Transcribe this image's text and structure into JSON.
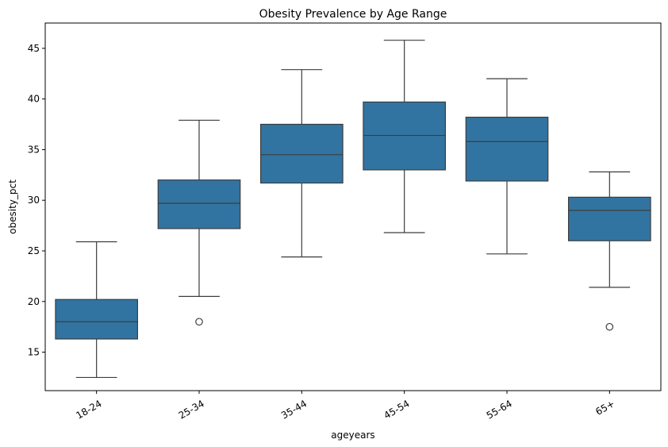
{
  "chart_data": {
    "type": "box",
    "title": "Obesity Prevalence by Age Range",
    "xlabel": "ageyears",
    "ylabel": "obesity_pct",
    "ylim": [
      11.2,
      47.5
    ],
    "yticks": [
      15,
      20,
      25,
      30,
      35,
      40,
      45
    ],
    "grid": false,
    "colors": {
      "box": "#3274a1",
      "line": "#3d3d3d",
      "spine": "#000000"
    },
    "categories": [
      "18-24",
      "25-34",
      "35-44",
      "45-54",
      "55-64",
      "65+"
    ],
    "boxes": [
      {
        "category": "18-24",
        "whisker_low": 12.5,
        "q1": 16.3,
        "median": 18.0,
        "q3": 20.2,
        "whisker_high": 25.9,
        "outliers": []
      },
      {
        "category": "25-34",
        "whisker_low": 20.5,
        "q1": 27.2,
        "median": 29.7,
        "q3": 32.0,
        "whisker_high": 37.9,
        "outliers": [
          18.0
        ]
      },
      {
        "category": "35-44",
        "whisker_low": 24.4,
        "q1": 31.7,
        "median": 34.5,
        "q3": 37.5,
        "whisker_high": 42.9,
        "outliers": []
      },
      {
        "category": "45-54",
        "whisker_low": 26.8,
        "q1": 33.0,
        "median": 36.4,
        "q3": 39.7,
        "whisker_high": 45.8,
        "outliers": []
      },
      {
        "category": "55-64",
        "whisker_low": 24.7,
        "q1": 31.9,
        "median": 35.8,
        "q3": 38.2,
        "whisker_high": 42.0,
        "outliers": []
      },
      {
        "category": "65+",
        "whisker_low": 21.4,
        "q1": 26.0,
        "median": 29.0,
        "q3": 30.3,
        "whisker_high": 32.8,
        "outliers": [
          17.5
        ]
      }
    ]
  }
}
